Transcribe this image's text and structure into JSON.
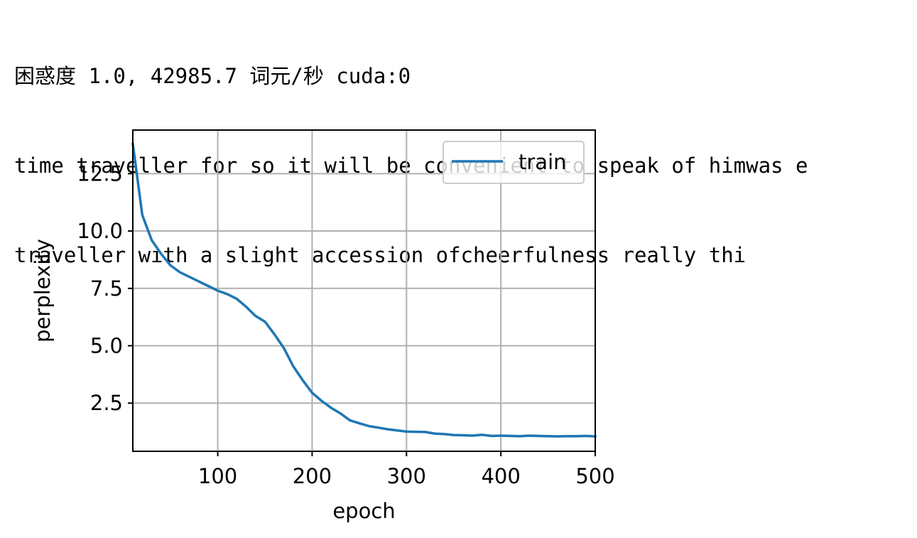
{
  "output": {
    "status_line": "困惑度 1.0, 42985.7 词元/秒 cuda:0",
    "sample_lines": [
      "time traveller for so it will be convenient to speak of himwas e",
      "traveller with a slight accession ofcheerfulness really thi"
    ]
  },
  "chart_data": {
    "type": "line",
    "xlabel": "epoch",
    "ylabel": "perplexity",
    "xlim": [
      10,
      500
    ],
    "ylim": [
      0.4,
      14.4
    ],
    "xticks": [
      100,
      200,
      300,
      400,
      500
    ],
    "yticks": [
      2.5,
      5.0,
      7.5,
      10.0,
      12.5
    ],
    "grid": true,
    "legend_position": "top-right",
    "series": [
      {
        "name": "train",
        "color": "#1f77b4",
        "x": [
          10,
          20,
          30,
          40,
          50,
          60,
          70,
          80,
          90,
          100,
          110,
          120,
          130,
          140,
          150,
          160,
          170,
          180,
          190,
          200,
          210,
          220,
          230,
          240,
          250,
          260,
          270,
          280,
          290,
          300,
          310,
          320,
          330,
          340,
          350,
          360,
          370,
          380,
          390,
          400,
          410,
          420,
          430,
          440,
          450,
          460,
          470,
          480,
          490,
          500
        ],
        "y": [
          13.8,
          10.7,
          9.6,
          9.0,
          8.5,
          8.2,
          8.0,
          7.8,
          7.6,
          7.4,
          7.25,
          7.05,
          6.7,
          6.3,
          6.05,
          5.5,
          4.9,
          4.1,
          3.5,
          2.95,
          2.6,
          2.3,
          2.05,
          1.75,
          1.62,
          1.5,
          1.43,
          1.36,
          1.31,
          1.26,
          1.25,
          1.24,
          1.17,
          1.15,
          1.11,
          1.1,
          1.08,
          1.12,
          1.07,
          1.08,
          1.07,
          1.06,
          1.08,
          1.07,
          1.06,
          1.05,
          1.06,
          1.06,
          1.07,
          1.05
        ]
      }
    ]
  }
}
